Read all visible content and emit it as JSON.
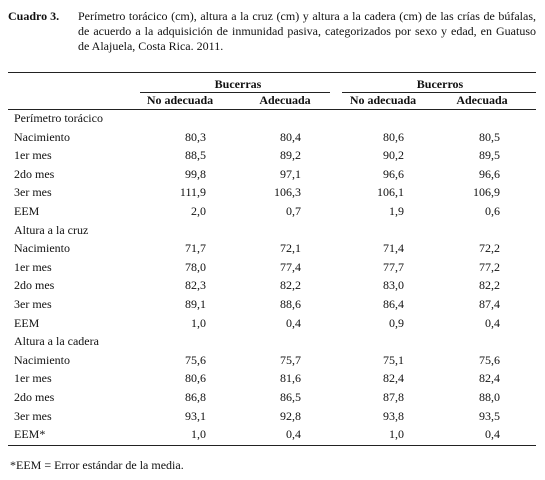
{
  "caption": {
    "label": "Cuadro 3.",
    "text": "Perímetro torácico (cm), altura a la cruz (cm) y altura a la cadera (cm) de las crías de búfalas, de acuerdo a la adquisición de inmunidad pasiva, categorizados por sexo y edad, en Guatuso de Alajuela, Costa Rica. 2011."
  },
  "table": {
    "groups": [
      "Bucerras",
      "Bucerros"
    ],
    "subheaders": [
      "No adecuada",
      "Adecuada",
      "No adecuada",
      "Adecuada"
    ],
    "sections": [
      {
        "title": "Perímetro torácico",
        "rows": [
          {
            "label": "Nacimiento",
            "values": [
              "80,3",
              "80,4",
              "80,6",
              "80,5"
            ]
          },
          {
            "label": "1er mes",
            "values": [
              "88,5",
              "89,2",
              "90,2",
              "89,5"
            ]
          },
          {
            "label": "2do mes",
            "values": [
              "99,8",
              "97,1",
              "96,6",
              "96,6"
            ]
          },
          {
            "label": "3er mes",
            "values": [
              "111,9",
              "106,3",
              "106,1",
              "106,9"
            ]
          },
          {
            "label": "EEM",
            "values": [
              "2,0",
              "0,7",
              "1,9",
              "0,6"
            ]
          }
        ]
      },
      {
        "title": "Altura a la cruz",
        "rows": [
          {
            "label": "Nacimiento",
            "values": [
              "71,7",
              "72,1",
              "71,4",
              "72,2"
            ]
          },
          {
            "label": "1er mes",
            "values": [
              "78,0",
              "77,4",
              "77,7",
              "77,2"
            ]
          },
          {
            "label": "2do mes",
            "values": [
              "82,3",
              "82,2",
              "83,0",
              "82,2"
            ]
          },
          {
            "label": "3er mes",
            "values": [
              "89,1",
              "88,6",
              "86,4",
              "87,4"
            ]
          },
          {
            "label": "EEM",
            "values": [
              "1,0",
              "0,4",
              "0,9",
              "0,4"
            ]
          }
        ]
      },
      {
        "title": "Altura a la cadera",
        "rows": [
          {
            "label": "Nacimiento",
            "values": [
              "75,6",
              "75,7",
              "75,1",
              "75,6"
            ]
          },
          {
            "label": "1er mes",
            "values": [
              "80,6",
              "81,6",
              "82,4",
              "82,4"
            ]
          },
          {
            "label": "2do mes",
            "values": [
              "86,8",
              "86,5",
              "87,8",
              "88,0"
            ]
          },
          {
            "label": "3er mes",
            "values": [
              "93,1",
              "92,8",
              "93,8",
              "93,5"
            ]
          },
          {
            "label": "EEM*",
            "values": [
              "1,0",
              "0,4",
              "1,0",
              "0,4"
            ]
          }
        ]
      }
    ]
  },
  "footnote": "*EEM = Error estándar de la media."
}
